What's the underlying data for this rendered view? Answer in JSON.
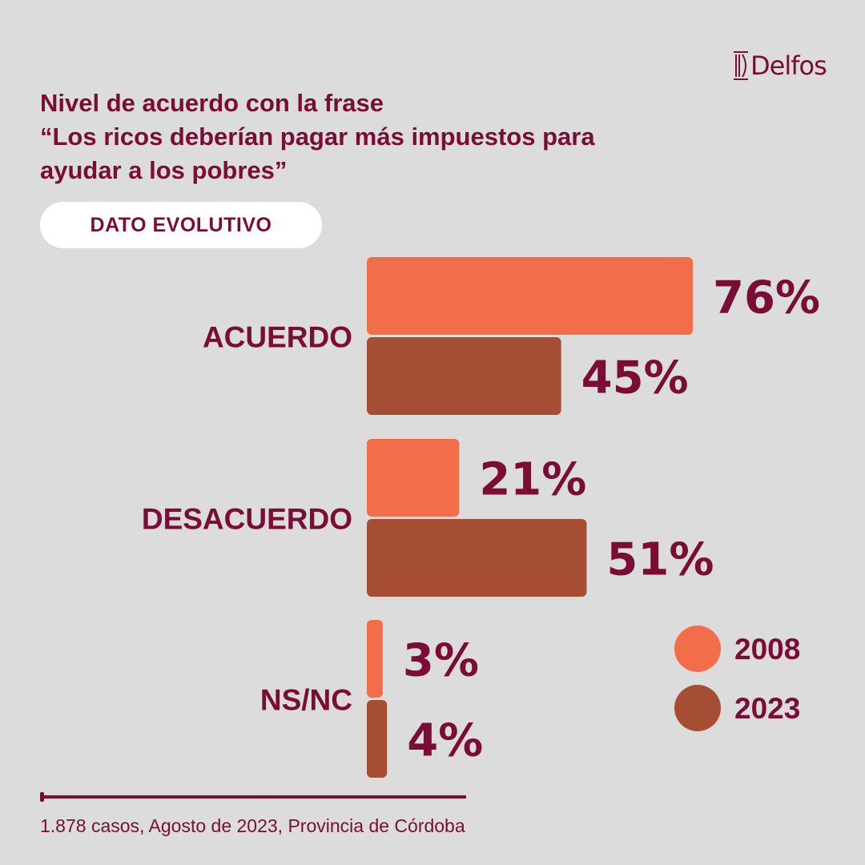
{
  "brand": {
    "logo_text": "Delfos"
  },
  "title_lines": [
    "Nivel de acuerdo con la frase",
    "“Los ricos deberían pagar más impuestos para",
    "ayudar a los pobres”"
  ],
  "badge": "DATO EVOLUTIVO",
  "colors": {
    "series_2008": "#f26e4a",
    "series_2023": "#a64e33",
    "text": "#7a0c36",
    "background": "#dcdcdc"
  },
  "chart_data": {
    "type": "bar",
    "orientation": "horizontal",
    "categories": [
      "ACUERDO",
      "DESACUERDO",
      "NS/NC"
    ],
    "series": [
      {
        "name": "2008",
        "values": [
          76,
          21,
          3
        ],
        "labels": [
          "76%",
          "21%",
          "3%"
        ]
      },
      {
        "name": "2023",
        "values": [
          45,
          51,
          4
        ],
        "labels": [
          "45%",
          "51%",
          "4%"
        ]
      }
    ],
    "unit": "%",
    "xlim": [
      0,
      100
    ],
    "grid": false,
    "legend": "bottom-right"
  },
  "footer": "1.878 casos, Agosto de 2023, Provincia de Córdoba"
}
